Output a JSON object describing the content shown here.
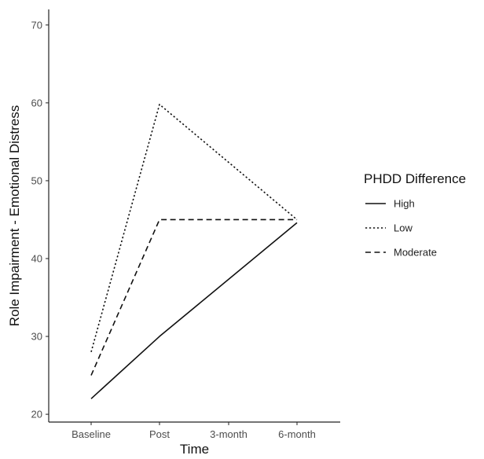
{
  "chart_data": {
    "type": "line",
    "title": "",
    "xlabel": "Time",
    "ylabel": "Role Impairment - Emotional Distress",
    "categories": [
      "Baseline",
      "Post",
      "3-month",
      "6-month"
    ],
    "ylim": [
      19,
      72
    ],
    "yticks": [
      20,
      30,
      40,
      50,
      60,
      70
    ],
    "grid": false,
    "legend": {
      "title": "PHDD Difference",
      "position": "right",
      "entries": [
        "High",
        "Low",
        "Moderate"
      ]
    },
    "series": [
      {
        "name": "High",
        "line_style": "solid",
        "x": [
          "Baseline",
          "Post",
          "6-month"
        ],
        "values": [
          22,
          30,
          44.6
        ]
      },
      {
        "name": "Low",
        "line_style": "dotted",
        "x": [
          "Baseline",
          "Post",
          "6-month"
        ],
        "values": [
          28,
          59.8,
          45
        ]
      },
      {
        "name": "Moderate",
        "line_style": "dashed",
        "x": [
          "Baseline",
          "Post",
          "6-month"
        ],
        "values": [
          25,
          45,
          45
        ]
      }
    ],
    "colors": {
      "line": "#111111",
      "axis": "#222222",
      "tick_text": "#4d4d4d"
    }
  }
}
